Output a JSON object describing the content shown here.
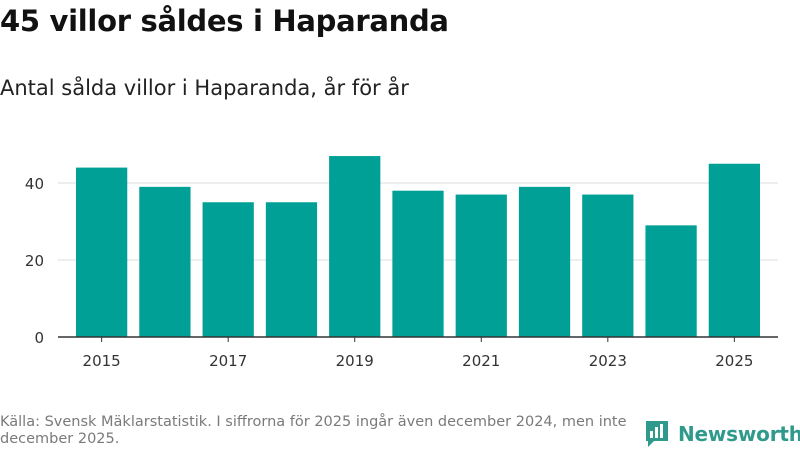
{
  "title": "45 villor såldes i Haparanda",
  "subtitle": "Antal sålda villor i Haparanda, år för år",
  "footer": {
    "source": "Källa: Svensk Mäklarstatistik. I siffrorna för 2025 ingår även december 2024, men inte december 2025."
  },
  "logo": {
    "text": "Newsworthy",
    "icon": "newsworthy-logo-icon",
    "color": "#2f9a8c"
  },
  "chart_data": {
    "type": "bar",
    "title": "45 villor såldes i Haparanda",
    "subtitle": "Antal sålda villor i Haparanda, år för år",
    "xlabel": "",
    "ylabel": "",
    "categories": [
      "2015",
      "2016",
      "2017",
      "2018",
      "2019",
      "2020",
      "2021",
      "2022",
      "2023",
      "2024",
      "2025"
    ],
    "values": [
      44,
      39,
      35,
      35,
      47,
      38,
      37,
      39,
      37,
      29,
      45
    ],
    "x_tick_labels": [
      "2015",
      "2017",
      "2019",
      "2021",
      "2023",
      "2025"
    ],
    "y_ticks": [
      0,
      20,
      40
    ],
    "ylim": [
      0,
      52
    ],
    "grid": true,
    "bar_color": "#00a096"
  }
}
